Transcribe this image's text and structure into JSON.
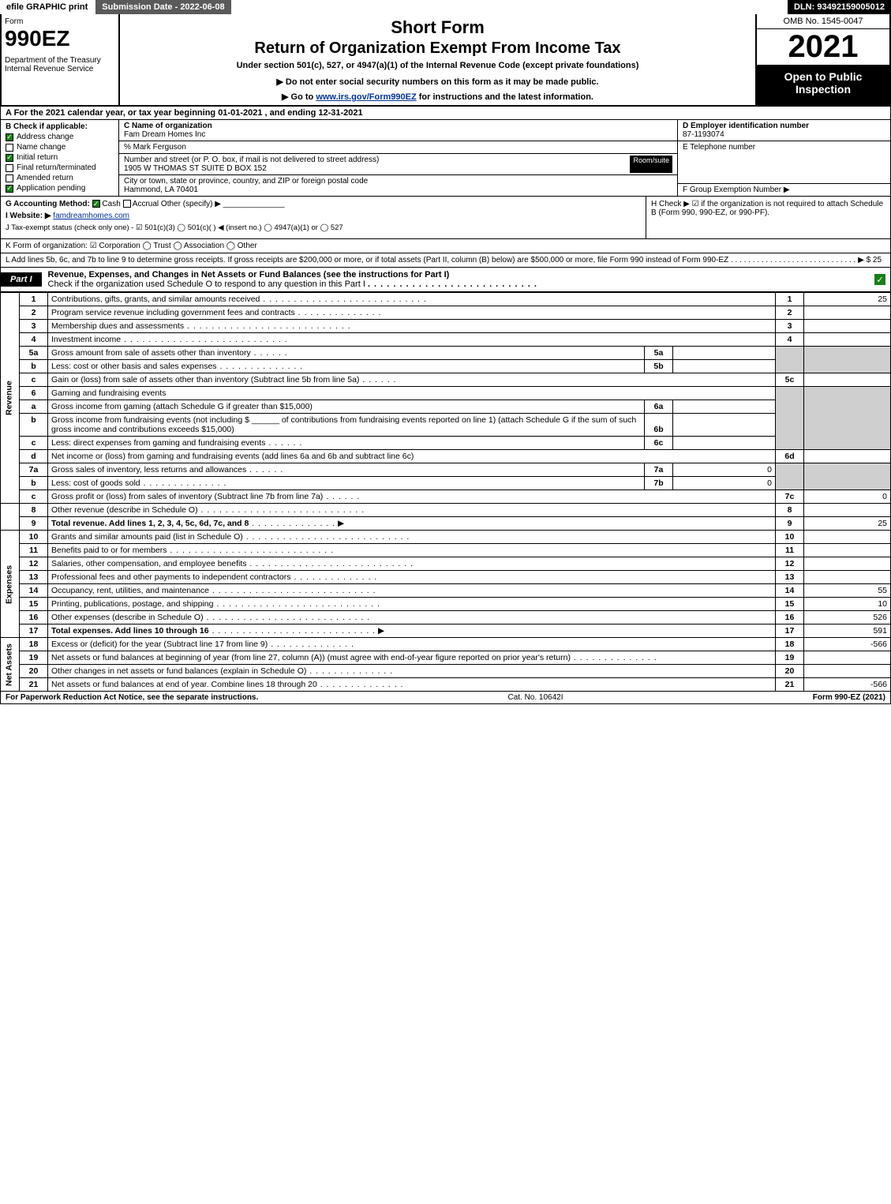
{
  "topbar": {
    "efile": "efile GRAPHIC print",
    "subdate": "Submission Date - 2022-06-08",
    "dln": "DLN: 93492159005012"
  },
  "header": {
    "form_label": "Form",
    "form_number": "990EZ",
    "dept": "Department of the Treasury\nInternal Revenue Service",
    "short_form": "Short Form",
    "return_title": "Return of Organization Exempt From Income Tax",
    "under_section": "Under section 501(c), 527, or 4947(a)(1) of the Internal Revenue Code (except private foundations)",
    "ssn_note": "▶ Do not enter social security numbers on this form as it may be made public.",
    "goto_prefix": "▶ Go to ",
    "goto_link": "www.irs.gov/Form990EZ",
    "goto_suffix": " for instructions and the latest information.",
    "omb": "OMB No. 1545-0047",
    "year": "2021",
    "open": "Open to Public Inspection"
  },
  "A": "A  For the 2021 calendar year, or tax year beginning 01-01-2021 , and ending 12-31-2021",
  "B": {
    "header": "B  Check if applicable:",
    "items": [
      {
        "label": "Address change",
        "checked": true
      },
      {
        "label": "Name change",
        "checked": false
      },
      {
        "label": "Initial return",
        "checked": true
      },
      {
        "label": "Final return/terminated",
        "checked": false
      },
      {
        "label": "Amended return",
        "checked": false
      },
      {
        "label": "Application pending",
        "checked": true
      }
    ]
  },
  "C": {
    "name_lbl": "C Name of organization",
    "name": "Fam Dream Homes Inc",
    "co": "% Mark Ferguson",
    "street_lbl": "Number and street (or P. O. box, if mail is not delivered to street address)",
    "room_lbl": "Room/suite",
    "street": "1905 W THOMAS ST SUITE D BOX 152",
    "city_lbl": "City or town, state or province, country, and ZIP or foreign postal code",
    "city": "Hammond, LA  70401"
  },
  "D": {
    "lbl": "D Employer identification number",
    "val": "87-1193074"
  },
  "E": {
    "lbl": "E Telephone number",
    "val": ""
  },
  "F": {
    "lbl": "F Group Exemption Number  ▶",
    "val": ""
  },
  "G": {
    "prefix": "G Accounting Method:",
    "cash": "Cash",
    "accrual": "Accrual",
    "other": "Other (specify) ▶"
  },
  "H": "H  Check ▶ ☑ if the organization is not required to attach Schedule B (Form 990, 990-EZ, or 990-PF).",
  "I": {
    "prefix": "I Website: ▶",
    "site": "famdreamhomes.com"
  },
  "J": "J Tax-exempt status (check only one) - ☑ 501(c)(3)  ◯ 501(c)(  ) ◀ (insert no.)  ◯ 4947(a)(1) or  ◯ 527",
  "K": "K Form of organization:  ☑ Corporation  ◯ Trust  ◯ Association  ◯ Other",
  "L": "L Add lines 5b, 6c, and 7b to line 9 to determine gross receipts. If gross receipts are $200,000 or more, or if total assets (Part II, column (B) below) are $500,000 or more, file Form 990 instead of Form 990-EZ  .  .  .  .  .  .  .  .  .  .  .  .  .  .  .  .  .  .  .  .  .  .  .  .  .  .  .  .  .  ▶ $ 25",
  "part1": {
    "tab": "Part I",
    "title": "Revenue, Expenses, and Changes in Net Assets or Fund Balances (see the instructions for Part I)",
    "sub": "Check if the organization used Schedule O to respond to any question in this Part I"
  },
  "sides": {
    "rev": "Revenue",
    "exp": "Expenses",
    "na": "Net Assets"
  },
  "rows": {
    "r1": {
      "ln": "1",
      "desc": "Contributions, gifts, grants, and similar amounts received",
      "num": "1",
      "val": "25"
    },
    "r2": {
      "ln": "2",
      "desc": "Program service revenue including government fees and contracts",
      "num": "2",
      "val": ""
    },
    "r3": {
      "ln": "3",
      "desc": "Membership dues and assessments",
      "num": "3",
      "val": ""
    },
    "r4": {
      "ln": "4",
      "desc": "Investment income",
      "num": "4",
      "val": ""
    },
    "r5a": {
      "ln": "5a",
      "desc": "Gross amount from sale of assets other than inventory",
      "sub": "5a",
      "subv": ""
    },
    "r5b": {
      "ln": "b",
      "desc": "Less: cost or other basis and sales expenses",
      "sub": "5b",
      "subv": ""
    },
    "r5c": {
      "ln": "c",
      "desc": "Gain or (loss) from sale of assets other than inventory (Subtract line 5b from line 5a)",
      "num": "5c",
      "val": ""
    },
    "r6": {
      "ln": "6",
      "desc": "Gaming and fundraising events"
    },
    "r6a": {
      "ln": "a",
      "desc": "Gross income from gaming (attach Schedule G if greater than $15,000)",
      "sub": "6a",
      "subv": ""
    },
    "r6b": {
      "ln": "b",
      "desc1": "Gross income from fundraising events (not including $",
      "desc2": "of contributions from fundraising events reported on line 1) (attach Schedule G if the sum of such gross income and contributions exceeds $15,000)",
      "sub": "6b",
      "subv": ""
    },
    "r6c": {
      "ln": "c",
      "desc": "Less: direct expenses from gaming and fundraising events",
      "sub": "6c",
      "subv": ""
    },
    "r6d": {
      "ln": "d",
      "desc": "Net income or (loss) from gaming and fundraising events (add lines 6a and 6b and subtract line 6c)",
      "num": "6d",
      "val": ""
    },
    "r7a": {
      "ln": "7a",
      "desc": "Gross sales of inventory, less returns and allowances",
      "sub": "7a",
      "subv": "0"
    },
    "r7b": {
      "ln": "b",
      "desc": "Less: cost of goods sold",
      "sub": "7b",
      "subv": "0"
    },
    "r7c": {
      "ln": "c",
      "desc": "Gross profit or (loss) from sales of inventory (Subtract line 7b from line 7a)",
      "num": "7c",
      "val": "0"
    },
    "r8": {
      "ln": "8",
      "desc": "Other revenue (describe in Schedule O)",
      "num": "8",
      "val": ""
    },
    "r9": {
      "ln": "9",
      "desc": "Total revenue. Add lines 1, 2, 3, 4, 5c, 6d, 7c, and 8",
      "num": "9",
      "val": "25"
    },
    "r10": {
      "ln": "10",
      "desc": "Grants and similar amounts paid (list in Schedule O)",
      "num": "10",
      "val": ""
    },
    "r11": {
      "ln": "11",
      "desc": "Benefits paid to or for members",
      "num": "11",
      "val": ""
    },
    "r12": {
      "ln": "12",
      "desc": "Salaries, other compensation, and employee benefits",
      "num": "12",
      "val": ""
    },
    "r13": {
      "ln": "13",
      "desc": "Professional fees and other payments to independent contractors",
      "num": "13",
      "val": ""
    },
    "r14": {
      "ln": "14",
      "desc": "Occupancy, rent, utilities, and maintenance",
      "num": "14",
      "val": "55"
    },
    "r15": {
      "ln": "15",
      "desc": "Printing, publications, postage, and shipping",
      "num": "15",
      "val": "10"
    },
    "r16": {
      "ln": "16",
      "desc": "Other expenses (describe in Schedule O)",
      "num": "16",
      "val": "526"
    },
    "r17": {
      "ln": "17",
      "desc": "Total expenses. Add lines 10 through 16",
      "num": "17",
      "val": "591"
    },
    "r18": {
      "ln": "18",
      "desc": "Excess or (deficit) for the year (Subtract line 17 from line 9)",
      "num": "18",
      "val": "-566"
    },
    "r19": {
      "ln": "19",
      "desc": "Net assets or fund balances at beginning of year (from line 27, column (A)) (must agree with end-of-year figure reported on prior year's return)",
      "num": "19",
      "val": ""
    },
    "r20": {
      "ln": "20",
      "desc": "Other changes in net assets or fund balances (explain in Schedule O)",
      "num": "20",
      "val": ""
    },
    "r21": {
      "ln": "21",
      "desc": "Net assets or fund balances at end of year. Combine lines 18 through 20",
      "num": "21",
      "val": "-566"
    }
  },
  "footer": {
    "left": "For Paperwork Reduction Act Notice, see the separate instructions.",
    "center": "Cat. No. 10642I",
    "right": "Form 990-EZ (2021)"
  },
  "colors": {
    "check_green": "#1a7f1a",
    "grey": "#cfcfcf",
    "link": "#003399"
  }
}
